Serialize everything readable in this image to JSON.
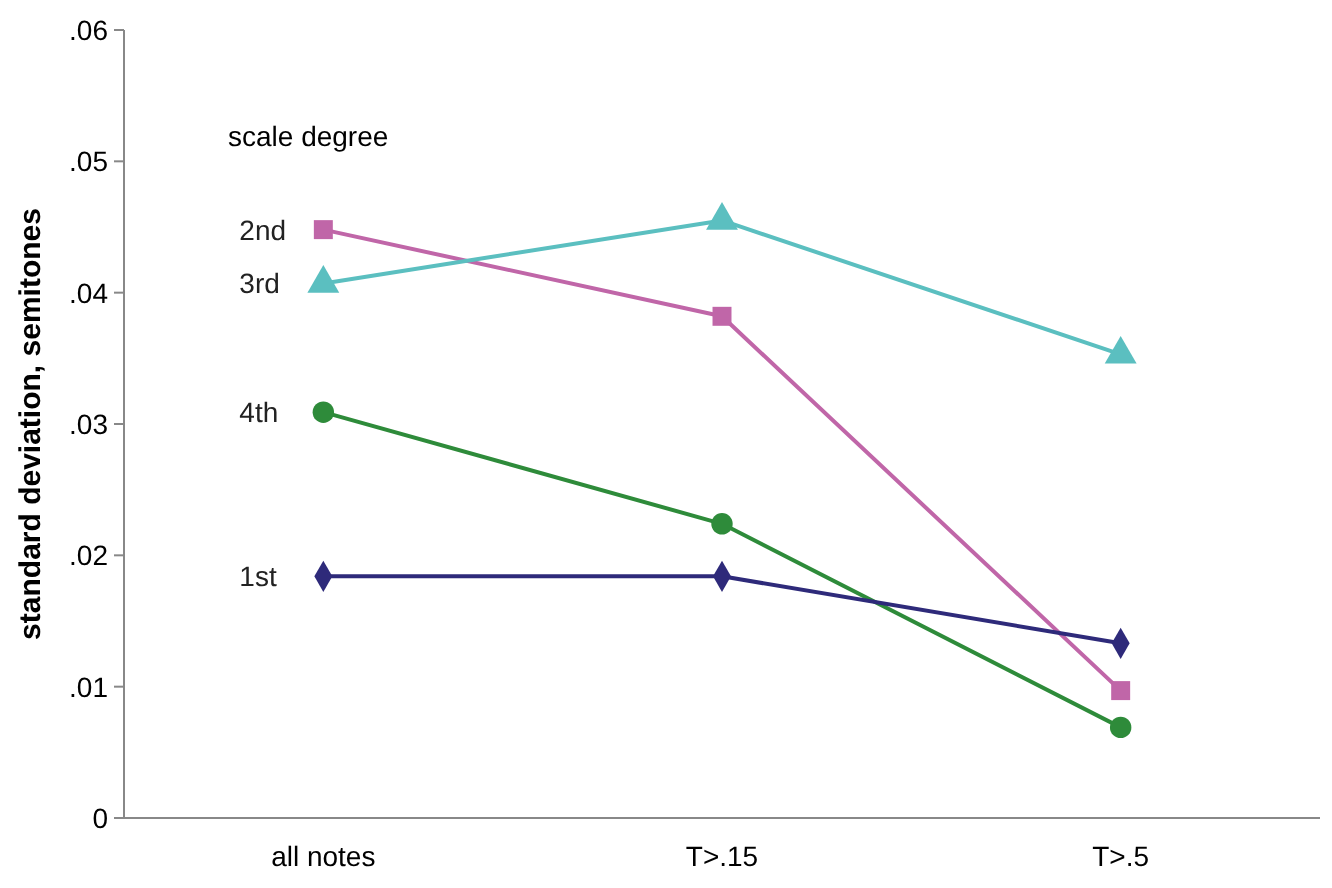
{
  "chart_data": {
    "type": "line",
    "ylabel": "standard deviation, semitones",
    "legend_title": "scale degree",
    "categories": [
      "all notes",
      "T>.15",
      "T>.5"
    ],
    "ylim": [
      0,
      0.06
    ],
    "yticks": [
      {
        "value": 0,
        "label": "0"
      },
      {
        "value": 0.01,
        "label": ".01"
      },
      {
        "value": 0.02,
        "label": ".02"
      },
      {
        "value": 0.03,
        "label": ".03"
      },
      {
        "value": 0.04,
        "label": ".04"
      },
      {
        "value": 0.05,
        "label": ".05"
      },
      {
        "value": 0.06,
        "label": ".06"
      }
    ],
    "series": [
      {
        "name": "2nd",
        "color": "#c066a8",
        "marker": "square",
        "values": [
          0.0448,
          0.0382,
          0.0097
        ]
      },
      {
        "name": "3rd",
        "color": "#5bbfc0",
        "marker": "triangle",
        "values": [
          0.0407,
          0.0455,
          0.0353
        ]
      },
      {
        "name": "4th",
        "color": "#2e8b3a",
        "marker": "circle",
        "values": [
          0.0309,
          0.0224,
          0.0069
        ]
      },
      {
        "name": "1st",
        "color": "#2e2a7a",
        "marker": "diamond",
        "values": [
          0.0184,
          0.0184,
          0.0133
        ]
      }
    ]
  }
}
